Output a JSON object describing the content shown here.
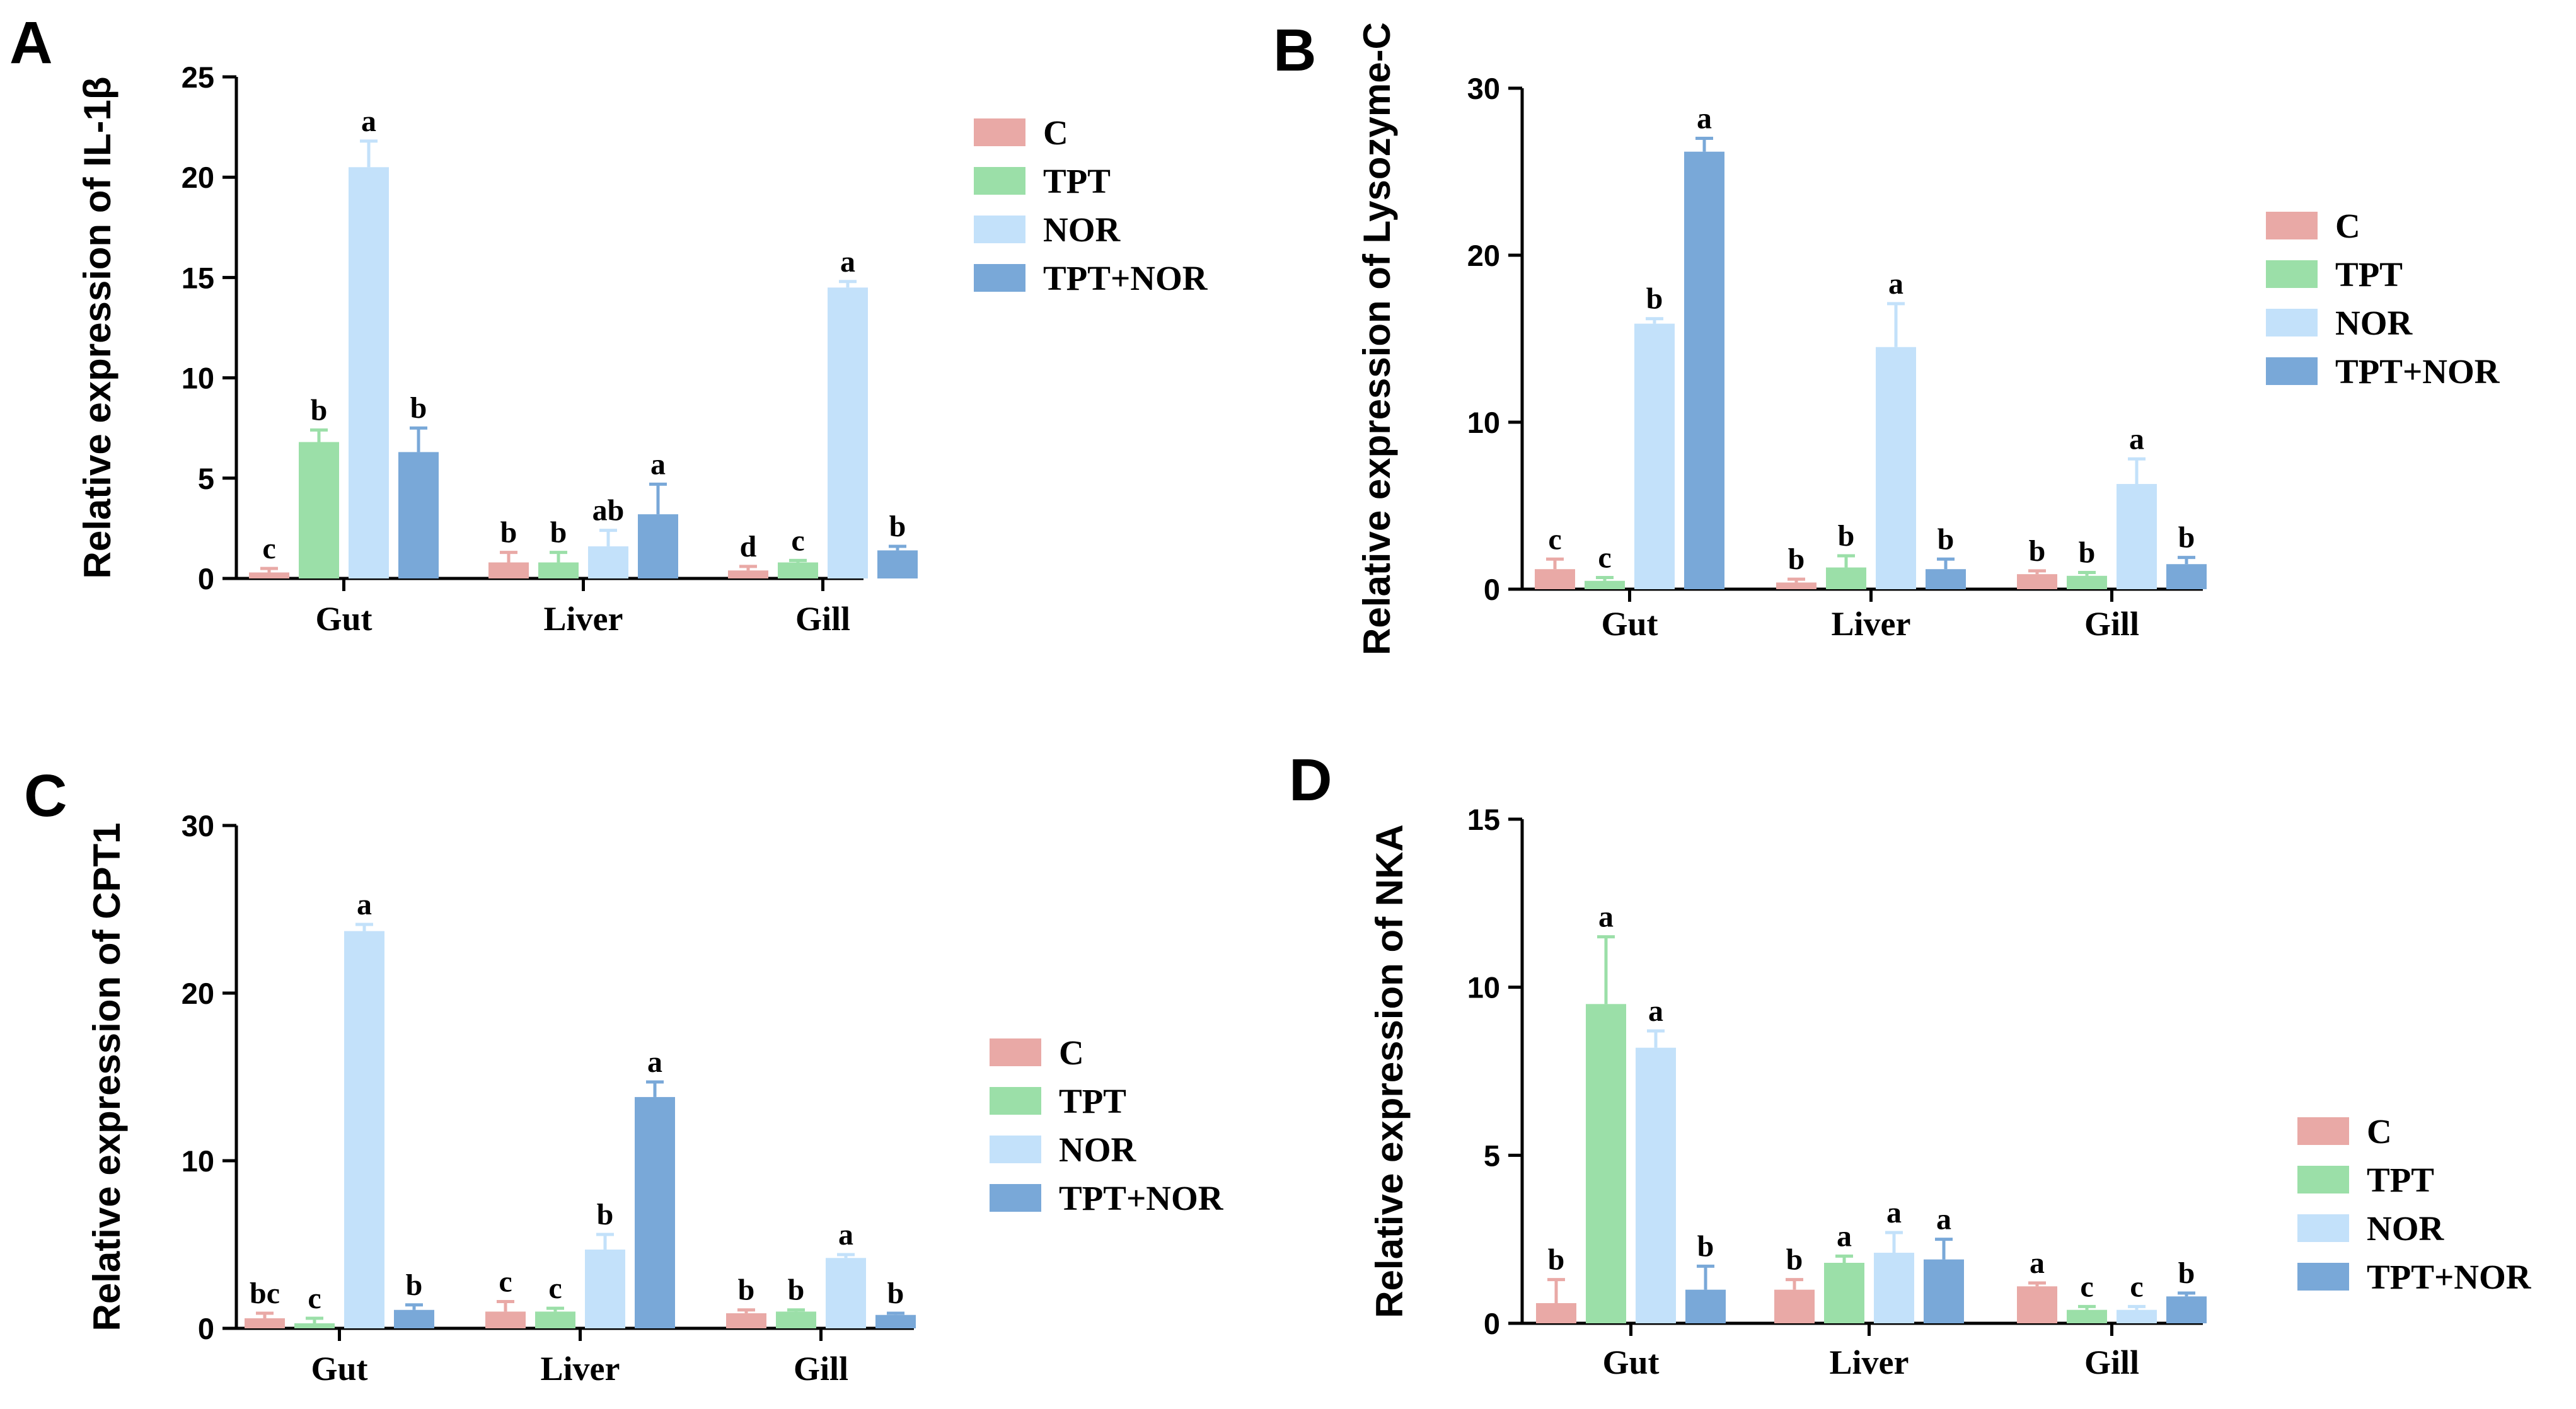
{
  "colors": {
    "C": "#e9a9a6",
    "TPT": "#9bdfa8",
    "NOR": "#c3e1fa",
    "TPT+NOR": "#79a8d8",
    "axis": "#000000"
  },
  "chart_data": [
    {
      "type": "bar",
      "panel": "A",
      "title": "",
      "xlabel": "",
      "ylabel": "Relative expression of IL-1β",
      "ylim": [
        0,
        25
      ],
      "yticks": [
        0,
        5,
        10,
        15,
        20,
        25
      ],
      "categories": [
        "Gut",
        "Liver",
        "Gill"
      ],
      "series": [
        {
          "name": "C",
          "values": [
            0.3,
            0.8,
            0.4
          ],
          "errors": [
            0.2,
            0.5,
            0.2
          ],
          "labels": [
            "c",
            "b",
            "d"
          ]
        },
        {
          "name": "TPT",
          "values": [
            6.8,
            0.8,
            0.8
          ],
          "errors": [
            0.6,
            0.5,
            0.1
          ],
          "labels": [
            "b",
            "b",
            "c"
          ]
        },
        {
          "name": "NOR",
          "values": [
            20.5,
            1.6,
            14.5
          ],
          "errors": [
            1.3,
            0.8,
            0.3
          ],
          "labels": [
            "a",
            "ab",
            "a"
          ]
        },
        {
          "name": "TPT+NOR",
          "values": [
            6.3,
            3.2,
            1.4
          ],
          "errors": [
            1.2,
            1.5,
            0.2
          ],
          "labels": [
            "b",
            "a",
            "b"
          ]
        }
      ]
    },
    {
      "type": "bar",
      "panel": "B",
      "title": "",
      "xlabel": "",
      "ylabel": "Relative expression of Lysozyme-C",
      "ylim": [
        0,
        30
      ],
      "yticks": [
        0,
        10,
        20,
        30
      ],
      "categories": [
        "Gut",
        "Liver",
        "Gill"
      ],
      "series": [
        {
          "name": "C",
          "values": [
            1.2,
            0.4,
            0.9
          ],
          "errors": [
            0.6,
            0.2,
            0.2
          ],
          "labels": [
            "c",
            "b",
            "b"
          ]
        },
        {
          "name": "TPT",
          "values": [
            0.5,
            1.3,
            0.8
          ],
          "errors": [
            0.2,
            0.7,
            0.2
          ],
          "labels": [
            "c",
            "b",
            "b"
          ]
        },
        {
          "name": "NOR",
          "values": [
            15.9,
            14.5,
            6.3
          ],
          "errors": [
            0.3,
            2.6,
            1.5
          ],
          "labels": [
            "b",
            "a",
            "a"
          ]
        },
        {
          "name": "TPT+NOR",
          "values": [
            26.2,
            1.2,
            1.5
          ],
          "errors": [
            0.8,
            0.6,
            0.4
          ],
          "labels": [
            "a",
            "b",
            "b"
          ]
        }
      ]
    },
    {
      "type": "bar",
      "panel": "C",
      "title": "",
      "xlabel": "",
      "ylabel": "Relative expression of CPT1",
      "ylim": [
        0,
        30
      ],
      "yticks": [
        0,
        10,
        20,
        30
      ],
      "categories": [
        "Gut",
        "Liver",
        "Gill"
      ],
      "series": [
        {
          "name": "C",
          "values": [
            0.6,
            1.0,
            0.9
          ],
          "errors": [
            0.3,
            0.6,
            0.2
          ],
          "labels": [
            "bc",
            "c",
            "b"
          ]
        },
        {
          "name": "TPT",
          "values": [
            0.3,
            1.0,
            1.0
          ],
          "errors": [
            0.3,
            0.2,
            0.1
          ],
          "labels": [
            "c",
            "c",
            "b"
          ]
        },
        {
          "name": "NOR",
          "values": [
            23.7,
            4.7,
            4.2
          ],
          "errors": [
            0.4,
            0.9,
            0.2
          ],
          "labels": [
            "a",
            "b",
            "a"
          ]
        },
        {
          "name": "TPT+NOR",
          "values": [
            1.1,
            13.8,
            0.8
          ],
          "errors": [
            0.3,
            0.9,
            0.1
          ],
          "labels": [
            "b",
            "a",
            "b"
          ]
        }
      ]
    },
    {
      "type": "bar",
      "panel": "D",
      "title": "",
      "xlabel": "",
      "ylabel": "Relative expression of NKA",
      "ylim": [
        0,
        15
      ],
      "yticks": [
        0,
        5,
        10,
        15
      ],
      "categories": [
        "Gut",
        "Liver",
        "Gill"
      ],
      "series": [
        {
          "name": "C",
          "values": [
            0.6,
            1.0,
            1.1
          ],
          "errors": [
            0.7,
            0.3,
            0.1
          ],
          "labels": [
            "b",
            "b",
            "a"
          ]
        },
        {
          "name": "TPT",
          "values": [
            9.5,
            1.8,
            0.4
          ],
          "errors": [
            2.0,
            0.2,
            0.1
          ],
          "labels": [
            "a",
            "a",
            "c"
          ]
        },
        {
          "name": "NOR",
          "values": [
            8.2,
            2.1,
            0.4
          ],
          "errors": [
            0.5,
            0.6,
            0.1
          ],
          "labels": [
            "a",
            "a",
            "c"
          ]
        },
        {
          "name": "TPT+NOR",
          "values": [
            1.0,
            1.9,
            0.8
          ],
          "errors": [
            0.7,
            0.6,
            0.1
          ],
          "labels": [
            "b",
            "a",
            "b"
          ]
        }
      ]
    }
  ]
}
